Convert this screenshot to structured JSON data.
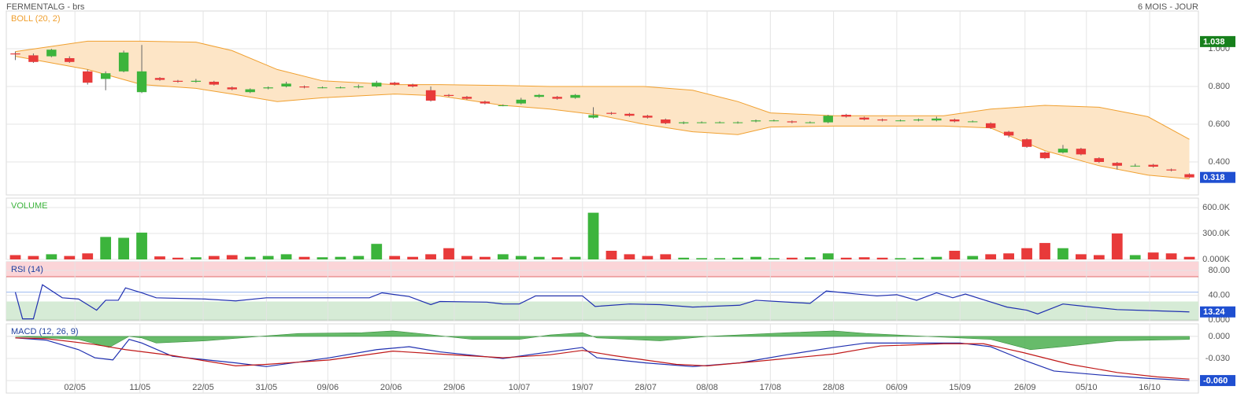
{
  "header": {
    "title": "FERMENTALG - brs",
    "period": "6 MOIS - JOUR"
  },
  "x_axis": {
    "xlim": [
      -0.5,
      65.5
    ],
    "xticks": [
      {
        "value": 3.3,
        "label": "02/05"
      },
      {
        "value": 6.9,
        "label": "11/05"
      },
      {
        "value": 10.4,
        "label": "22/05"
      },
      {
        "value": 13.9,
        "label": "31/05"
      },
      {
        "value": 17.3,
        "label": "09/06"
      },
      {
        "value": 20.8,
        "label": "20/06"
      },
      {
        "value": 24.3,
        "label": "29/06"
      },
      {
        "value": 27.9,
        "label": "10/07"
      },
      {
        "value": 31.4,
        "label": "19/07"
      },
      {
        "value": 34.9,
        "label": "28/07"
      },
      {
        "value": 38.3,
        "label": "08/08"
      },
      {
        "value": 41.8,
        "label": "17/08"
      },
      {
        "value": 45.3,
        "label": "28/08"
      },
      {
        "value": 48.8,
        "label": "06/09"
      },
      {
        "value": 52.3,
        "label": "15/09"
      },
      {
        "value": 55.9,
        "label": "26/09"
      },
      {
        "value": 59.3,
        "label": "05/10"
      },
      {
        "value": 62.8,
        "label": "16/10"
      }
    ]
  },
  "chart_data": [
    {
      "type": "candlestick",
      "title": "BOLL (20, 2)",
      "title_color": "#f0a030",
      "up_color": "#3cb43c",
      "down_color": "#e83a3a",
      "grid": true,
      "open": [
        0.975,
        0.965,
        0.96,
        0.95,
        0.88,
        0.84,
        0.88,
        0.77,
        0.845,
        0.83,
        0.825,
        0.825,
        0.795,
        0.77,
        0.79,
        0.8,
        0.8,
        0.795,
        0.795,
        0.798,
        0.8,
        0.82,
        0.81,
        0.78,
        0.755,
        0.745,
        0.72,
        0.7,
        0.71,
        0.745,
        0.745,
        0.74,
        0.635,
        0.66,
        0.655,
        0.645,
        0.625,
        0.605,
        0.61,
        0.61,
        0.608,
        0.615,
        0.62,
        0.615,
        0.61,
        0.61,
        0.65,
        0.635,
        0.625,
        0.62,
        0.62,
        0.62,
        0.625,
        0.615,
        0.605,
        0.56,
        0.52,
        0.45,
        0.45,
        0.47,
        0.42,
        0.395,
        0.38,
        0.385,
        0.36,
        0.335
      ],
      "high": [
        0.985,
        0.975,
        1.0,
        0.96,
        0.89,
        0.88,
        0.99,
        1.02,
        0.85,
        0.835,
        0.84,
        0.83,
        0.8,
        0.79,
        0.8,
        0.825,
        0.805,
        0.8,
        0.8,
        0.81,
        0.83,
        0.825,
        0.815,
        0.8,
        0.76,
        0.75,
        0.725,
        0.705,
        0.74,
        0.76,
        0.75,
        0.76,
        0.69,
        0.665,
        0.66,
        0.65,
        0.63,
        0.615,
        0.615,
        0.615,
        0.615,
        0.625,
        0.625,
        0.62,
        0.615,
        0.65,
        0.655,
        0.64,
        0.63,
        0.625,
        0.63,
        0.64,
        0.63,
        0.62,
        0.61,
        0.565,
        0.525,
        0.455,
        0.49,
        0.475,
        0.425,
        0.4,
        0.39,
        0.39,
        0.365,
        0.34
      ],
      "low": [
        0.94,
        0.925,
        0.955,
        0.925,
        0.81,
        0.78,
        0.875,
        0.765,
        0.83,
        0.82,
        0.82,
        0.805,
        0.78,
        0.765,
        0.785,
        0.795,
        0.79,
        0.79,
        0.79,
        0.79,
        0.795,
        0.805,
        0.795,
        0.72,
        0.745,
        0.73,
        0.705,
        0.695,
        0.705,
        0.74,
        0.73,
        0.735,
        0.63,
        0.65,
        0.64,
        0.63,
        0.6,
        0.6,
        0.605,
        0.605,
        0.603,
        0.61,
        0.615,
        0.605,
        0.605,
        0.605,
        0.635,
        0.62,
        0.615,
        0.615,
        0.615,
        0.615,
        0.61,
        0.61,
        0.575,
        0.53,
        0.475,
        0.415,
        0.445,
        0.435,
        0.395,
        0.36,
        0.375,
        0.37,
        0.35,
        0.315
      ],
      "close": [
        0.97,
        0.93,
        0.995,
        0.93,
        0.82,
        0.87,
        0.98,
        0.88,
        0.835,
        0.825,
        0.83,
        0.81,
        0.785,
        0.785,
        0.795,
        0.815,
        0.795,
        0.795,
        0.795,
        0.8,
        0.82,
        0.81,
        0.8,
        0.725,
        0.75,
        0.735,
        0.71,
        0.7,
        0.73,
        0.755,
        0.735,
        0.755,
        0.648,
        0.655,
        0.645,
        0.635,
        0.605,
        0.61,
        0.61,
        0.61,
        0.61,
        0.62,
        0.62,
        0.61,
        0.61,
        0.645,
        0.64,
        0.625,
        0.62,
        0.62,
        0.625,
        0.63,
        0.615,
        0.615,
        0.58,
        0.54,
        0.48,
        0.42,
        0.47,
        0.44,
        0.4,
        0.38,
        0.38,
        0.375,
        0.355,
        0.318
      ],
      "bands": {
        "color": "#f0a030",
        "fill": "#fde5c6",
        "x": [
          0,
          4,
          7,
          10,
          12,
          14.5,
          17,
          21,
          23.5,
          27,
          29.6,
          32.2,
          34.8,
          37.5,
          40,
          41.8,
          45.3,
          51.4,
          54,
          57,
          60,
          62.7,
          65
        ],
        "upper": [
          0.985,
          1.04,
          1.04,
          1.035,
          0.99,
          0.89,
          0.83,
          0.81,
          0.81,
          0.805,
          0.8,
          0.8,
          0.8,
          0.78,
          0.72,
          0.66,
          0.645,
          0.645,
          0.68,
          0.7,
          0.69,
          0.64,
          0.52
        ],
        "lower": [
          0.96,
          0.89,
          0.81,
          0.79,
          0.76,
          0.72,
          0.74,
          0.76,
          0.75,
          0.7,
          0.68,
          0.65,
          0.6,
          0.56,
          0.545,
          0.585,
          0.59,
          0.59,
          0.58,
          0.46,
          0.38,
          0.33,
          0.31
        ]
      },
      "ylim": [
        0.225,
        1.2
      ],
      "yticks": [
        {
          "value": 1,
          "label": "1.000"
        },
        {
          "value": 0.8,
          "label": "0.800"
        },
        {
          "value": 0.6,
          "label": "0.600"
        },
        {
          "value": 0.4,
          "label": "0.400"
        }
      ],
      "markers": [
        {
          "value": 1.038,
          "color": "#17801c"
        },
        {
          "value": 0.318,
          "color": "#1f4fd1"
        }
      ]
    },
    {
      "type": "bar",
      "title": "VOLUME",
      "title_color": "#3cb43c",
      "grid": true,
      "values": [
        50000,
        40000,
        60000,
        40000,
        70000,
        260000,
        250000,
        310000,
        35000,
        20000,
        25000,
        40000,
        50000,
        30000,
        40000,
        60000,
        30000,
        25000,
        30000,
        40000,
        180000,
        40000,
        30000,
        60000,
        130000,
        40000,
        30000,
        60000,
        40000,
        30000,
        25000,
        30000,
        540000,
        100000,
        60000,
        40000,
        60000,
        20000,
        15000,
        15000,
        20000,
        30000,
        15000,
        20000,
        25000,
        70000,
        20000,
        25000,
        20000,
        15000,
        20000,
        30000,
        100000,
        40000,
        60000,
        70000,
        130000,
        190000,
        130000,
        60000,
        50000,
        300000,
        50000,
        80000,
        70000,
        30000
      ],
      "ylim": [
        0,
        709000
      ],
      "yticks": [
        {
          "value": 600000,
          "label": "600.0K"
        },
        {
          "value": 300000,
          "label": "300.0K"
        },
        {
          "value": 0,
          "label": "0.000K"
        }
      ]
    },
    {
      "type": "line",
      "title": "RSI (14)",
      "title_color": "#1f3f9f",
      "grid": true,
      "series": [
        {
          "color": "#1f2fb0",
          "x": [
            0,
            0.4,
            1,
            1.5,
            2.6,
            3.5,
            4.5,
            5,
            5.7,
            6.1,
            7,
            7.8,
            10.5,
            12.2,
            13.9,
            16.6,
            19.6,
            20.3,
            21.8,
            23,
            23.5,
            26.1,
            27,
            27.9,
            28.8,
            31.4,
            32.1,
            34,
            35.7,
            37.5,
            40.1,
            41,
            44,
            44.9,
            46.6,
            47.7,
            48.8,
            49.9,
            51,
            51.9,
            52.6,
            53.8,
            54.9,
            56,
            56.6,
            58,
            59.3,
            61,
            63.2,
            65
          ],
          "values": [
            45,
            2,
            2,
            57,
            36,
            34,
            16,
            32,
            32,
            52,
            44,
            36,
            34,
            31,
            36,
            36,
            36,
            44,
            38,
            25,
            30,
            29,
            26,
            26,
            39,
            39,
            22,
            26,
            25,
            21,
            24,
            32,
            27,
            47,
            42,
            39,
            41,
            32,
            44,
            36,
            42,
            31,
            21,
            16,
            10,
            26,
            22,
            17,
            15,
            13.24
          ]
        }
      ],
      "zones": [
        {
          "from": 70,
          "to": 94,
          "fill": "#fbd5d8",
          "line": "#e06a6a"
        },
        {
          "from": 0,
          "to": 30,
          "fill": "#d6ebd6",
          "line": "#4a9a4a"
        }
      ],
      "midline": {
        "value": 45,
        "color": "#9bb8ef"
      },
      "ylim": [
        -1,
        94
      ],
      "yticks": [
        {
          "value": 80,
          "label": "80.00"
        },
        {
          "value": 40,
          "label": "40.00"
        },
        {
          "value": 0,
          "label": "0.000"
        }
      ],
      "markers": [
        {
          "value": 13.24,
          "color": "#1f4fd1"
        }
      ]
    },
    {
      "type": "line",
      "title": "MACD (12, 26, 9)",
      "title_color": "#1f3f9f",
      "grid": true,
      "series": [
        {
          "color": "#4caf50",
          "style": "area",
          "x": [
            0,
            3.5,
            5.2,
            6.3,
            7,
            7.8,
            10.5,
            13.5,
            15.7,
            19.2,
            20.9,
            22.7,
            25.3,
            27.9,
            29.6,
            31.4,
            32.2,
            35.7,
            38.3,
            42.7,
            45.3,
            47.1,
            50.5,
            54,
            56.2,
            58.4,
            61,
            65
          ],
          "values": [
            0,
            -0.004,
            -0.015,
            0,
            -0.002,
            -0.009,
            -0.006,
            0,
            0.004,
            0.005,
            0.0075,
            0.003,
            -0.004,
            -0.004,
            0.002,
            0.005,
            -0.002,
            -0.006,
            0,
            0.005,
            0.0075,
            0.004,
            0,
            -0.004,
            -0.018,
            -0.013,
            -0.006,
            -0.004
          ]
        },
        {
          "color": "#1f2fb0",
          "x": [
            0,
            1.7,
            3.5,
            4.4,
            5.4,
            6.3,
            7,
            8.7,
            12.2,
            13.9,
            17.4,
            20,
            21.8,
            23.5,
            27,
            29.6,
            31.4,
            32.2,
            34.9,
            37.5,
            40.1,
            42.7,
            45.3,
            47.1,
            50.5,
            52.3,
            54,
            55.8,
            57.5,
            60.1,
            62.7,
            65
          ],
          "values": [
            -0.002,
            -0.005,
            -0.018,
            -0.029,
            -0.032,
            -0.004,
            -0.009,
            -0.027,
            -0.036,
            -0.041,
            -0.029,
            -0.018,
            -0.014,
            -0.021,
            -0.03,
            -0.021,
            -0.015,
            -0.029,
            -0.036,
            -0.041,
            -0.036,
            -0.025,
            -0.015,
            -0.009,
            -0.009,
            -0.009,
            -0.014,
            -0.032,
            -0.047,
            -0.0525,
            -0.057,
            -0.06
          ]
        },
        {
          "color": "#c01818",
          "x": [
            0,
            1.7,
            4.4,
            6.1,
            8.7,
            12.2,
            13.9,
            17.4,
            20.9,
            23.5,
            27,
            29.6,
            31.4,
            33.1,
            36.6,
            38.3,
            41,
            45.3,
            47.9,
            51.4,
            53.6,
            55.8,
            58.4,
            61,
            63.2,
            65
          ],
          "values": [
            -0.002,
            -0.003,
            -0.011,
            -0.018,
            -0.026,
            -0.04,
            -0.038,
            -0.032,
            -0.02,
            -0.024,
            -0.029,
            -0.025,
            -0.019,
            -0.026,
            -0.038,
            -0.04,
            -0.034,
            -0.024,
            -0.013,
            -0.01,
            -0.01,
            -0.022,
            -0.038,
            -0.049,
            -0.055,
            -0.058
          ]
        }
      ],
      "ylim": [
        -0.077,
        0.017
      ],
      "yticks": [
        {
          "value": 0,
          "label": "0.000"
        },
        {
          "value": -0.03,
          "label": "-0.030"
        },
        {
          "value": -0.06,
          "label": "-0.060"
        }
      ],
      "markers": [
        {
          "value": -0.06,
          "label": "-0.060",
          "color": "#1f4fd1"
        }
      ]
    }
  ]
}
